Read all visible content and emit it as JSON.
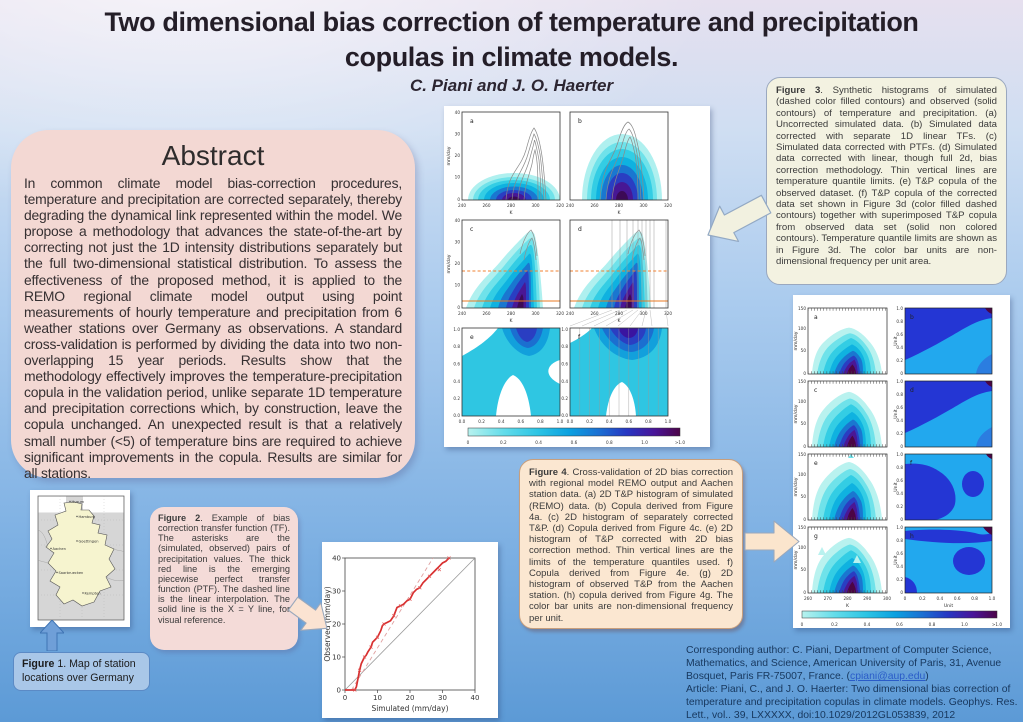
{
  "colors": {
    "background_top": "#e6e0ef",
    "background_bottom": "#5c9ad6",
    "title_text": "#241e28",
    "abstract_box": "#f3d8d3",
    "fig3_box": "#f3f2e1",
    "fig4_box": "#fbe7d1",
    "fig2_box": "#f4dbd8",
    "fig1_box": "#a9c7e8",
    "footer_text": "#17375d",
    "link": "#2a5cc8",
    "arrow_cream": "#f2f1e0",
    "arrow_peach": "#fbe5cd",
    "arrow_blue": "#6f9fd8",
    "red_line": "#d83030"
  },
  "title": {
    "line1": "Two dimensional bias correction of temperature and precipitation",
    "line2": "copulas in climate models",
    "period": ".",
    "authors": "C. Piani and J. O. Haerter"
  },
  "abstract": {
    "heading": "Abstract",
    "body": "In common climate model bias-correction procedures, temperature and precipitation are corrected separately, thereby degrading the dynamical link represented within the model. We propose a methodology that advances the state-of-the-art by correcting not just the 1D intensity distributions separately but the full two-dimensional statistical distribution. To assess the effectiveness of the proposed method, it is applied to the REMO regional climate model output using point measurements of hourly temperature and precipitation from 6 weather stations over Germany as observations. A standard cross-validation is performed by dividing the data into two non-overlapping 15 year periods. Results show that the methodology effectively improves the temperature-precipitation copula in the validation period, unlike separate 1D temperature and precipitation corrections which, by construction, leave the copula unchanged. An unexpected result is that a relatively small number (<5) of temperature bins are required to achieve significant improvements in the copula. Results are similar for all stations."
  },
  "captions": {
    "fig3_label": "Figure 3",
    "fig3_text": ". Synthetic histograms of simulated (dashed color filled contours) and observed (solid contours) of temperature and precipitation. (a) Uncorrected simulated data. (b) Simulated data corrected with separate 1D linear TFs. (c) Simulated data corrected with PTFs. (d) Simulated data corrected with linear, though full 2d, bias correction methodology. Thin vertical lines are temperature quantile limits. (e) T&P copula of the observed dataset. (f) T&P copula of the corrected data set shown in Figure 3d (color filled dashed contours) together with superimposed T&P copula from observed data set (solid non colored contours). Temperature quantile limits are shown as in Figure 3d. The color bar units are non-dimensional frequency per unit area.",
    "fig4_label": "Figure 4",
    "fig4_text": ". Cross-validation of 2D bias correction with regional model REMO output and Aachen station data. (a) 2D T&P histogram of simulated (REMO) data. (b) Copula derived from Figure 4a. (c) 2D histogram of separately corrected T&P. (d) Copula derived from Figure 4c. (e) 2D histogram of T&P corrected with 2D bias correction method. Thin vertical lines are the limits of the temperature quantiles used. f) Copula derived from Figure 4e. (g) 2D histogram of observed T&P from the Aachen station. (h) copula derived from Figure 4g. The color bar units are non-dimensional frequency per unit.",
    "fig2_label": "Figure 2",
    "fig2_text": ". Example of bias correction transfer function (TF). The asterisks are the (simulated, observed) pairs of precipitation values. The thick red line is the emerging piecewise perfect transfer function (PTF). The dashed line is the linear interpolation. The solid line is the X = Y line, for visual reference.",
    "fig1_label": "Figure",
    "fig1_text": " 1. Map of station locations over Germany"
  },
  "footer": {
    "part1": "Corresponding author: C. Piani, Department of Computer Science, Mathematics, and Science, American University of Paris, 31, Avenue Bosquet, Paris FR-75007, France. (",
    "email": "cpiani@aup.edu",
    "part2": ")",
    "article": "Article: Piani, C., and J. O. Haerter: Two dimensional bias correction of temperature and precipitation copulas in climate models. Geophys. Res. Lett., vol.. 39, LXXXXX, doi:10.1029/2012GL053839, 2012"
  },
  "fig3": {
    "letters": [
      "a",
      "b",
      "c",
      "d",
      "e",
      "f"
    ],
    "kticks": [
      "240",
      "260",
      "280",
      "300",
      "320"
    ],
    "k": "K",
    "mmday": "mm/day",
    "yticks": [
      "40",
      "30",
      "20",
      "10",
      "0"
    ],
    "uticks": [
      "0.0",
      "0.2",
      "0.4",
      "0.6",
      "0.8",
      "1.0"
    ],
    "u_yticks": [
      "1.0",
      "0.8",
      "0.6",
      "0.4",
      "0.2",
      "0.0"
    ],
    "cbar": [
      "0",
      "0.2",
      "0.4",
      "0.6",
      "0.8",
      "1.0",
      ">1.0"
    ]
  },
  "fig4": {
    "letters": [
      "a",
      "b",
      "c",
      "d",
      "e",
      "f",
      "g",
      "h"
    ],
    "yticks": [
      "150",
      "100",
      "50",
      "0"
    ],
    "mmday": "mm/day",
    "unit": "Unit",
    "u_yticks": [
      "1.0",
      "0.8",
      "0.6",
      "0.4",
      "0.2",
      "0"
    ],
    "kticks": [
      "260",
      "270",
      "280",
      "290",
      "300"
    ],
    "k": "K",
    "uticks": [
      "0",
      "0.2",
      "0.4",
      "0.6",
      "0.8",
      "1.0"
    ],
    "cbar": [
      "0",
      "0.2",
      "0.4",
      "0.6",
      "0.8",
      "1.0",
      ">1.0"
    ]
  },
  "fig2": {
    "xlabel": "Simulated (mm/day)",
    "ylabel": "Observed (mm/day)",
    "xticks": [
      "0",
      "10",
      "20",
      "30",
      "40"
    ],
    "yticks": [
      "40",
      "30",
      "20",
      "10",
      "0"
    ]
  },
  "map": {
    "stations": [
      "Husum",
      "Hamburg",
      "Goettingen",
      "Aachen",
      "Saarbruecken",
      "Kempten"
    ]
  }
}
